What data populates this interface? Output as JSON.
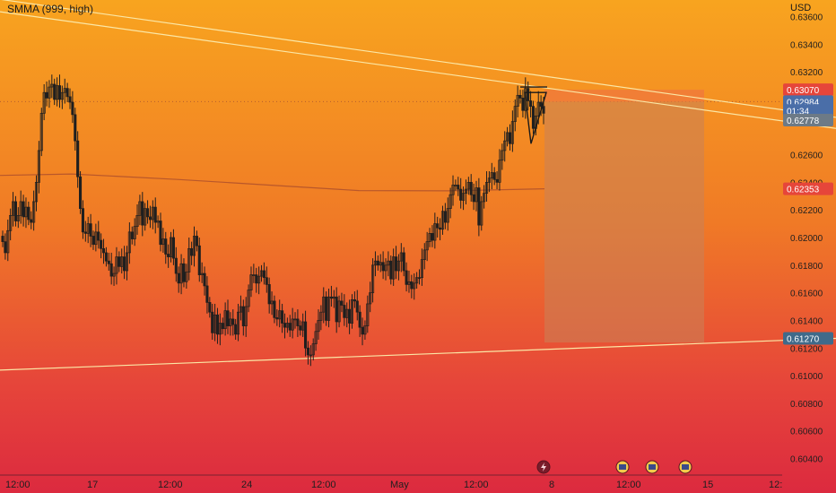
{
  "indicator": "SMMA (999, high)",
  "currency": "USD",
  "colors": {
    "candle_up": "#1f1f1f",
    "candle_down": "#1f1f1f",
    "trendline": "#fbe7a6",
    "smma_line": "#b9572a",
    "badge_red": "#e6453a",
    "badge_blue": "#4a6ea8",
    "badge_gray": "#6d7a86",
    "badge_dark": "#3f6a8a",
    "stop_zone": "#f07a3a",
    "target_zone": "#c98258",
    "hline": "#b55e2e"
  },
  "chart_data": {
    "type": "candlestick",
    "y_axis_ticks": [
      "0.63600",
      "0.63400",
      "0.63200",
      "0.62600",
      "0.62400",
      "0.62200",
      "0.62000",
      "0.61800",
      "0.61600",
      "0.61400",
      "0.61200",
      "0.61000",
      "0.60800",
      "0.60600",
      "0.60400"
    ],
    "ylim": [
      0.6028,
      0.6372
    ],
    "x_axis_ticks": [
      "12:00",
      "17",
      "12:00",
      "24",
      "12:00",
      "May",
      "12:00",
      "8",
      "12:00",
      "15",
      "12:"
    ],
    "price_badges": [
      {
        "label": "0.63070",
        "value": 0.6307,
        "color": "#e6453a"
      },
      {
        "label": "0.62984",
        "value": 0.62984,
        "color": "#4a6ea8"
      },
      {
        "label": "01:34",
        "value": 0.6292,
        "color": "#4a6ea8"
      },
      {
        "label": "0.62778",
        "value": 0.6285,
        "color": "#6d7a86"
      },
      {
        "label": "0.62353",
        "value": 0.62353,
        "color": "#e6453a"
      },
      {
        "label": "0.61270",
        "value": 0.6127,
        "color": "#3f6a8a"
      }
    ],
    "smma": [
      [
        0,
        0.6245
      ],
      [
        80,
        0.6246
      ],
      [
        200,
        0.6242
      ],
      [
        300,
        0.6238
      ],
      [
        400,
        0.6234
      ],
      [
        500,
        0.62338
      ],
      [
        607,
        0.62353
      ]
    ],
    "candles_close": [
      0.6197,
      0.6189,
      0.6205,
      0.6216,
      0.6226,
      0.6212,
      0.6216,
      0.6226,
      0.6215,
      0.6222,
      0.6213,
      0.6211,
      0.6226,
      0.624,
      0.6263,
      0.629,
      0.6305,
      0.6301,
      0.6309,
      0.6311,
      0.63,
      0.631,
      0.63,
      0.6305,
      0.6308,
      0.6302,
      0.6298,
      0.6289,
      0.627,
      0.6244,
      0.6221,
      0.6204,
      0.6203,
      0.621,
      0.6201,
      0.6195,
      0.6204,
      0.6198,
      0.6192,
      0.6189,
      0.6183,
      0.6181,
      0.6172,
      0.6174,
      0.6186,
      0.6179,
      0.6186,
      0.6176,
      0.6189,
      0.6204,
      0.6199,
      0.6208,
      0.6216,
      0.6226,
      0.6209,
      0.6221,
      0.6215,
      0.6213,
      0.6222,
      0.6211,
      0.6212,
      0.6195,
      0.6199,
      0.6188,
      0.6186,
      0.62,
      0.6185,
      0.6174,
      0.6167,
      0.6181,
      0.6168,
      0.6175,
      0.6192,
      0.6187,
      0.6201,
      0.6194,
      0.6173,
      0.6174,
      0.6165,
      0.6153,
      0.6146,
      0.6131,
      0.6144,
      0.613,
      0.6138,
      0.6134,
      0.6147,
      0.6136,
      0.6141,
      0.6137,
      0.613,
      0.6146,
      0.615,
      0.6136,
      0.615,
      0.6162,
      0.6173,
      0.6173,
      0.6167,
      0.6172,
      0.6176,
      0.6171,
      0.6166,
      0.6152,
      0.6154,
      0.6142,
      0.6141,
      0.6147,
      0.6138,
      0.6135,
      0.6138,
      0.6133,
      0.6141,
      0.6141,
      0.6136,
      0.6133,
      0.6139,
      0.612,
      0.6115,
      0.6115,
      0.6123,
      0.6132,
      0.614,
      0.6146,
      0.6157,
      0.614,
      0.6157,
      0.6156,
      0.6157,
      0.6139,
      0.6154,
      0.6151,
      0.6142,
      0.6148,
      0.6138,
      0.6155,
      0.6154,
      0.6146,
      0.6135,
      0.613,
      0.6136,
      0.6152,
      0.616,
      0.618,
      0.6183,
      0.618,
      0.6182,
      0.6176,
      0.618,
      0.6183,
      0.617,
      0.6186,
      0.6176,
      0.6183,
      0.6189,
      0.6176,
      0.6166,
      0.6168,
      0.6163,
      0.6167,
      0.6171,
      0.6171,
      0.6184,
      0.6191,
      0.6197,
      0.6203,
      0.6198,
      0.621,
      0.6207,
      0.6206,
      0.6219,
      0.6211,
      0.6221,
      0.6231,
      0.6238,
      0.6238,
      0.6235,
      0.6227,
      0.6232,
      0.6235,
      0.624,
      0.6231,
      0.6226,
      0.6236,
      0.6209,
      0.6226,
      0.6232,
      0.624,
      0.6243,
      0.6247,
      0.6242,
      0.624,
      0.6256,
      0.6263,
      0.627,
      0.6276,
      0.6268,
      0.6284,
      0.6295,
      0.6303,
      0.6301,
      0.6292,
      0.6308,
      0.6299,
      0.6295,
      0.6279,
      0.6288,
      0.6298,
      0.6295,
      0.629
    ],
    "trendlines": [
      {
        "from": [
          0,
          0.63725
        ],
        "to": [
          932,
          0.6287
        ]
      },
      {
        "from": [
          0,
          0.63635
        ],
        "to": [
          932,
          0.6279
        ]
      },
      {
        "from": [
          0,
          0.6104
        ],
        "to": [
          932,
          0.6127
        ]
      }
    ],
    "position_zone": {
      "x_start_idx": 607,
      "x_end_idx": 785,
      "entry": 0.62984,
      "stop": 0.6307,
      "target": 0.6124
    },
    "event_icons": [
      "lightning-icon",
      "earnings-icon",
      "earnings-icon",
      "earnings-icon"
    ]
  }
}
